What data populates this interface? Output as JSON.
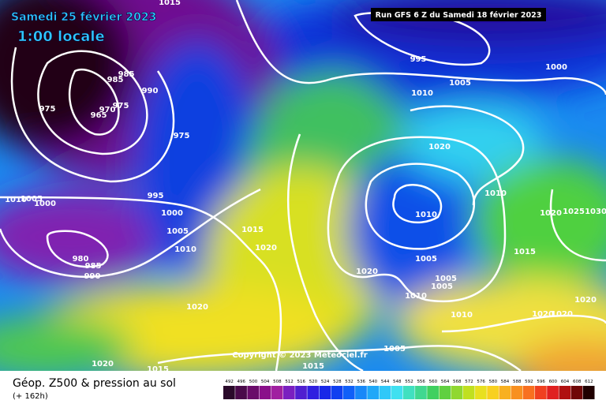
{
  "header": {
    "title": "Samedi 25 février 2023",
    "time": "1:00 locale",
    "run": "Run GFS 6 Z du Samedi 18 février 2023"
  },
  "isobar_labels": [
    1015,
    995,
    1000,
    1005,
    1010,
    985,
    985,
    990,
    975,
    970,
    965,
    975,
    975,
    1020,
    995,
    1010,
    1005,
    1000,
    1000,
    1010,
    1010,
    1020,
    1025,
    1030,
    1005,
    1015,
    1010,
    1020,
    980,
    985,
    990,
    1015,
    1005,
    1020,
    1005,
    1005,
    1010,
    1020,
    1020,
    1010,
    1020,
    1020,
    1005,
    1015,
    1020,
    1015
  ],
  "copyright": "Copyright © 2023 Meteociel.fr",
  "legend": {
    "title": "Géop. Z500 & pression au sol",
    "lead": "(+ 162h)",
    "scale": [
      492,
      496,
      500,
      504,
      508,
      512,
      516,
      520,
      524,
      528,
      532,
      536,
      540,
      544,
      548,
      552,
      556,
      560,
      564,
      568,
      572,
      576,
      580,
      584,
      588,
      592,
      596,
      600,
      604,
      608,
      612
    ]
  }
}
